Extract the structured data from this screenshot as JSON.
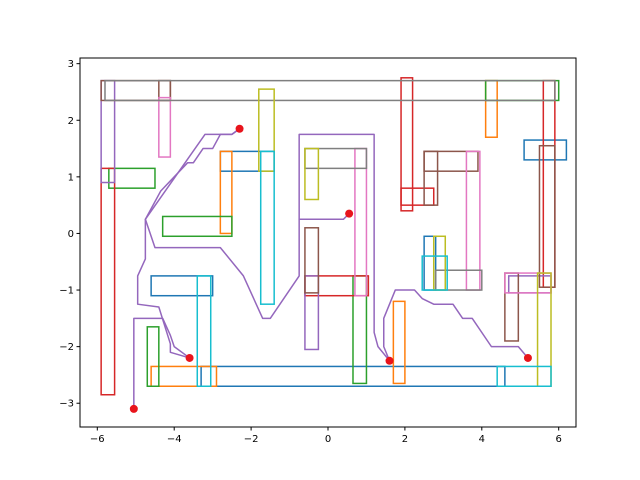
{
  "chart_data": {
    "type": "line",
    "title": "",
    "xlabel": "",
    "ylabel": "",
    "xlim": [
      -6.45,
      6.45
    ],
    "ylim": [
      -3.42,
      3.1
    ],
    "xticks": [
      -6,
      -4,
      -2,
      0,
      2,
      4,
      6
    ],
    "yticks": [
      -3,
      -2,
      -1,
      0,
      1,
      2,
      3
    ],
    "xtick_labels": [
      "−6",
      "−4",
      "−2",
      "0",
      "2",
      "4",
      "6"
    ],
    "ytick_labels": [
      "−3",
      "−2",
      "−1",
      "0",
      "1",
      "2",
      "3"
    ],
    "grid": false,
    "legend": "none",
    "rectangles": [
      {
        "x0": -3.3,
        "y0": -2.7,
        "x1": 4.6,
        "y1": -2.35,
        "color": "#1f77b4"
      },
      {
        "x0": -4.6,
        "y0": -1.1,
        "x1": -3.0,
        "y1": -0.75,
        "color": "#1f77b4"
      },
      {
        "x0": -2.8,
        "y0": 1.1,
        "x1": -1.4,
        "y1": 1.45,
        "color": "#1f77b4"
      },
      {
        "x0": 2.5,
        "y0": -1.0,
        "x1": 2.8,
        "y1": -0.05,
        "color": "#1f77b4"
      },
      {
        "x0": 5.1,
        "y0": 1.3,
        "x1": 6.2,
        "y1": 1.65,
        "color": "#1f77b4"
      },
      {
        "x0": -4.6,
        "y0": -2.7,
        "x1": -2.9,
        "y1": -2.35,
        "color": "#ff7f0e"
      },
      {
        "x0": -2.8,
        "y0": 0.0,
        "x1": -2.5,
        "y1": 1.45,
        "color": "#ff7f0e"
      },
      {
        "x0": 1.7,
        "y0": -2.65,
        "x1": 2.0,
        "y1": -1.2,
        "color": "#ff7f0e"
      },
      {
        "x0": 4.1,
        "y0": 1.7,
        "x1": 4.4,
        "y1": 2.7,
        "color": "#ff7f0e"
      },
      {
        "x0": -5.7,
        "y0": 0.8,
        "x1": -4.5,
        "y1": 1.15,
        "color": "#2ca02c"
      },
      {
        "x0": -4.3,
        "y0": -0.05,
        "x1": -2.5,
        "y1": 0.3,
        "color": "#2ca02c"
      },
      {
        "x0": -4.7,
        "y0": -2.7,
        "x1": -4.4,
        "y1": -1.65,
        "color": "#2ca02c"
      },
      {
        "x0": 0.65,
        "y0": -2.65,
        "x1": 1.0,
        "y1": -0.75,
        "color": "#2ca02c"
      },
      {
        "x0": 4.1,
        "y0": 2.35,
        "x1": 6.0,
        "y1": 2.7,
        "color": "#2ca02c"
      },
      {
        "x0": -5.9,
        "y0": -2.85,
        "x1": -5.55,
        "y1": 1.15,
        "color": "#d62728"
      },
      {
        "x0": -0.6,
        "y0": -1.1,
        "x1": 1.05,
        "y1": -0.75,
        "color": "#d62728"
      },
      {
        "x0": 1.9,
        "y0": 0.4,
        "x1": 2.2,
        "y1": 2.75,
        "color": "#d62728"
      },
      {
        "x0": 1.9,
        "y0": 0.5,
        "x1": 2.75,
        "y1": 0.8,
        "color": "#d62728"
      },
      {
        "x0": 5.6,
        "y0": -0.95,
        "x1": 5.9,
        "y1": 2.7,
        "color": "#d62728"
      },
      {
        "x0": -5.9,
        "y0": 0.9,
        "x1": -5.55,
        "y1": 2.7,
        "color": "#9467bd"
      },
      {
        "x0": -0.6,
        "y0": -2.05,
        "x1": -0.25,
        "y1": -0.75,
        "color": "#9467bd"
      },
      {
        "x0": 4.7,
        "y0": -1.05,
        "x1": 5.8,
        "y1": -0.75,
        "color": "#9467bd"
      },
      {
        "x0": -5.9,
        "y0": 2.35,
        "x1": -4.1,
        "y1": 2.7,
        "color": "#8c564b"
      },
      {
        "x0": -4.4,
        "y0": 2.35,
        "x1": -4.1,
        "y1": 2.7,
        "color": "#8c564b"
      },
      {
        "x0": -0.6,
        "y0": -1.05,
        "x1": -0.25,
        "y1": 0.1,
        "color": "#8c564b"
      },
      {
        "x0": 2.5,
        "y0": 0.5,
        "x1": 2.85,
        "y1": 1.45,
        "color": "#8c564b"
      },
      {
        "x0": 2.5,
        "y0": 1.1,
        "x1": 3.9,
        "y1": 1.45,
        "color": "#8c564b"
      },
      {
        "x0": 4.6,
        "y0": -1.9,
        "x1": 4.95,
        "y1": -0.7,
        "color": "#8c564b"
      },
      {
        "x0": 5.5,
        "y0": -0.95,
        "x1": 5.9,
        "y1": 1.55,
        "color": "#8c564b"
      },
      {
        "x0": -4.4,
        "y0": 1.35,
        "x1": -4.1,
        "y1": 2.4,
        "color": "#e377c2"
      },
      {
        "x0": 0.7,
        "y0": -1.1,
        "x1": 1.0,
        "y1": 1.5,
        "color": "#e377c2"
      },
      {
        "x0": 3.6,
        "y0": -1.0,
        "x1": 3.95,
        "y1": 1.45,
        "color": "#e377c2"
      },
      {
        "x0": 4.6,
        "y0": -1.05,
        "x1": 5.8,
        "y1": -0.7,
        "color": "#e377c2"
      },
      {
        "x0": -5.8,
        "y0": 2.35,
        "x1": 5.9,
        "y1": 2.7,
        "color": "#7f7f7f"
      },
      {
        "x0": -0.6,
        "y0": 1.15,
        "x1": 1.0,
        "y1": 1.5,
        "color": "#7f7f7f"
      },
      {
        "x0": 2.8,
        "y0": -1.0,
        "x1": 4.0,
        "y1": -0.65,
        "color": "#7f7f7f"
      },
      {
        "x0": -1.8,
        "y0": 1.1,
        "x1": -1.4,
        "y1": 2.55,
        "color": "#bcbd22"
      },
      {
        "x0": -0.6,
        "y0": 0.6,
        "x1": -0.25,
        "y1": 1.5,
        "color": "#bcbd22"
      },
      {
        "x0": 2.75,
        "y0": -1.0,
        "x1": 3.05,
        "y1": -0.05,
        "color": "#bcbd22"
      },
      {
        "x0": 5.45,
        "y0": -2.7,
        "x1": 5.8,
        "y1": -0.7,
        "color": "#bcbd22"
      },
      {
        "x0": -3.4,
        "y0": -2.7,
        "x1": -3.05,
        "y1": -0.75,
        "color": "#17becf"
      },
      {
        "x0": -1.75,
        "y0": -1.25,
        "x1": -1.4,
        "y1": 1.45,
        "color": "#17becf"
      },
      {
        "x0": 2.45,
        "y0": -1.0,
        "x1": 3.1,
        "y1": -0.4,
        "color": "#17becf"
      },
      {
        "x0": 4.4,
        "y0": -2.7,
        "x1": 5.8,
        "y1": -2.35,
        "color": "#17becf"
      }
    ],
    "paths": [
      {
        "name": "",
        "color": "#9467bd",
        "points": [
          [
            -5.05,
            -3.1
          ],
          [
            -5.05,
            -1.5
          ],
          [
            -4.3,
            -1.5
          ],
          [
            -4.1,
            -1.8
          ],
          [
            -4.0,
            -2.0
          ],
          [
            -3.6,
            -2.2
          ]
        ]
      },
      {
        "name": "",
        "color": "#9467bd",
        "points": [
          [
            -3.6,
            -2.2
          ],
          [
            -4.1,
            -2.1
          ],
          [
            -4.1,
            -1.95
          ],
          [
            -4.4,
            -1.3
          ],
          [
            -4.95,
            -1.25
          ],
          [
            -4.95,
            -0.75
          ],
          [
            -4.75,
            -0.45
          ],
          [
            -4.75,
            0.25
          ],
          [
            -4.35,
            0.75
          ],
          [
            -3.65,
            1.25
          ],
          [
            -3.5,
            1.25
          ],
          [
            -3.25,
            1.5
          ],
          [
            -3.0,
            1.5
          ],
          [
            -2.8,
            1.75
          ],
          [
            -2.5,
            1.75
          ],
          [
            -2.3,
            1.85
          ]
        ]
      },
      {
        "name": "",
        "color": "#9467bd",
        "points": [
          [
            -2.3,
            1.85
          ],
          [
            -2.5,
            1.75
          ],
          [
            -3.2,
            1.75
          ],
          [
            -4.75,
            0.25
          ],
          [
            -4.5,
            -0.25
          ],
          [
            -2.8,
            -0.25
          ],
          [
            -2.2,
            -0.75
          ],
          [
            -1.7,
            -1.5
          ],
          [
            -1.5,
            -1.5
          ],
          [
            -0.75,
            -0.75
          ],
          [
            -0.75,
            1.75
          ],
          [
            1.2,
            1.75
          ],
          [
            1.2,
            -1.75
          ],
          [
            1.3,
            -2.0
          ],
          [
            1.6,
            -2.25
          ]
        ]
      },
      {
        "name": "",
        "color": "#9467bd",
        "points": [
          [
            1.6,
            -2.25
          ],
          [
            1.45,
            -2.0
          ],
          [
            1.45,
            -1.5
          ],
          [
            1.75,
            -1.0
          ],
          [
            2.25,
            -1.0
          ],
          [
            2.45,
            -1.15
          ],
          [
            2.75,
            -1.25
          ],
          [
            3.25,
            -1.25
          ],
          [
            3.5,
            -1.5
          ],
          [
            3.75,
            -1.5
          ],
          [
            4.25,
            -2.0
          ],
          [
            4.95,
            -2.0
          ],
          [
            5.2,
            -2.2
          ]
        ]
      },
      {
        "name": "",
        "color": "#9467bd",
        "points": [
          [
            0.55,
            0.35
          ],
          [
            0.4,
            0.25
          ],
          [
            -0.75,
            0.25
          ]
        ]
      }
    ],
    "points": [
      {
        "x": -5.05,
        "y": -3.1
      },
      {
        "x": -3.6,
        "y": -2.2
      },
      {
        "x": -2.3,
        "y": 1.85
      },
      {
        "x": 0.55,
        "y": 0.35
      },
      {
        "x": 1.6,
        "y": -2.25
      },
      {
        "x": 5.2,
        "y": -2.2
      }
    ],
    "point_color": "#e8141c"
  }
}
